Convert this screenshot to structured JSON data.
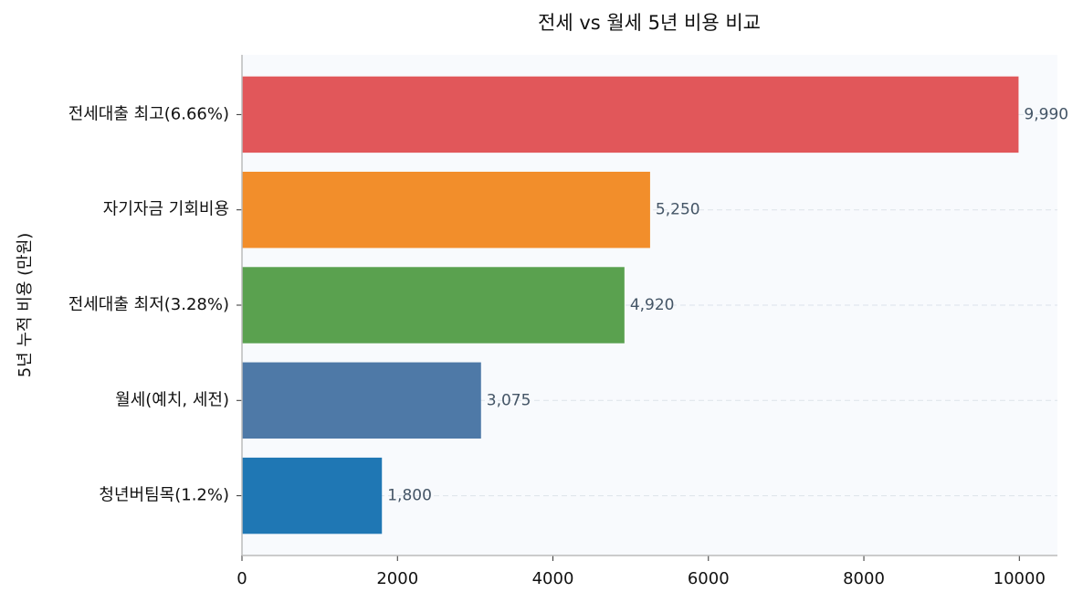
{
  "chart_data": {
    "type": "barh",
    "title": "전세 vs 월세 5년 비용 비교",
    "y_label": "5년 누적 비용 (만원)",
    "categories": [
      "전세대출 최고(6.66%)",
      "자기자금 기회비용",
      "전세대출 최저(3.28%)",
      "월세(예치, 세전)",
      "청년버팀목(1.2%)"
    ],
    "values": [
      9990,
      5250,
      4920,
      3075,
      1800
    ],
    "value_labels": [
      "9,990",
      "5,250",
      "4,920",
      "3,075",
      "1,800"
    ],
    "colors": [
      "#e1575a",
      "#f28e2b",
      "#5aa14f",
      "#4e79a7",
      "#1f77b4"
    ],
    "xlim": [
      0,
      10490
    ],
    "xticks": [
      0,
      2000,
      4000,
      6000,
      8000,
      10000
    ],
    "grid": true
  }
}
